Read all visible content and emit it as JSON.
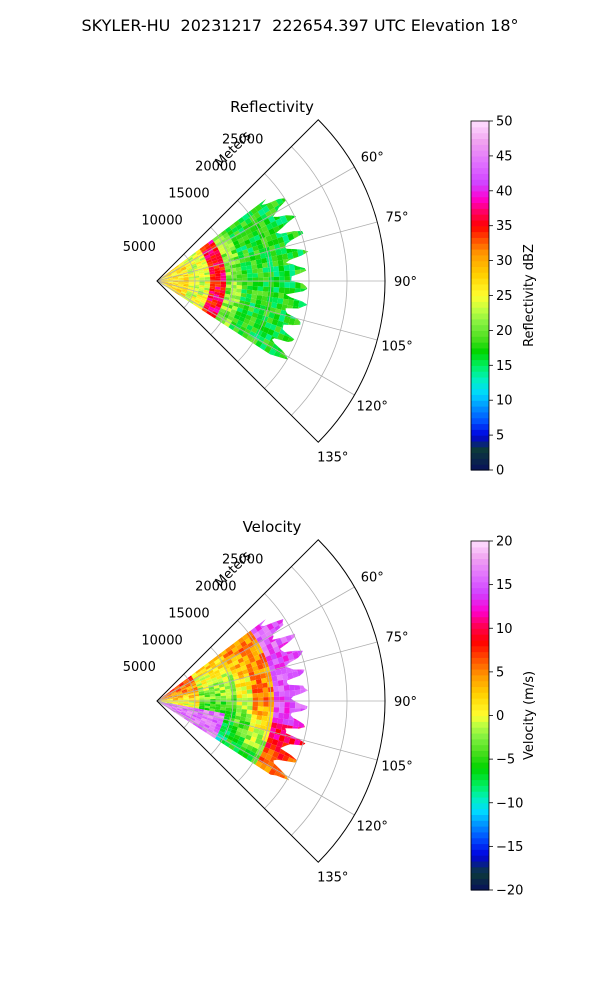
{
  "figure": {
    "title": "SKYLER-HU  20231217  222654.397 UTC Elevation 18°"
  },
  "chart_data": [
    {
      "type": "heatmap",
      "title": "Reflectivity",
      "radial_axis_label": "Meters",
      "radial_ticks": [
        5000,
        10000,
        15000,
        20000,
        25000
      ],
      "radial_tick_labels": [
        "5000",
        "10000",
        "15000",
        "20000",
        "25000"
      ],
      "radial_max": 30000,
      "azimuth_range": [
        45,
        135
      ],
      "azimuth_ticks": [
        60,
        75,
        90,
        105,
        120,
        135
      ],
      "azimuth_tick_labels": [
        "60°",
        "75°",
        "90°",
        "105°",
        "120°",
        "135°"
      ],
      "data_extent": {
        "azimuth": [
          53,
          123
        ],
        "range_max": 20000
      },
      "colorbar": {
        "label": "Reflectivity dBZ",
        "range": [
          0,
          50
        ],
        "ticks": [
          0,
          5,
          10,
          15,
          20,
          25,
          30,
          35,
          40,
          45,
          50
        ],
        "tick_labels": [
          "0",
          "5",
          "10",
          "15",
          "20",
          "25",
          "30",
          "35",
          "40",
          "45",
          "50"
        ],
        "color_stops": [
          [
            0,
            "#08105a"
          ],
          [
            3,
            "#0c3a3a"
          ],
          [
            5,
            "#0000e0"
          ],
          [
            7,
            "#0050ff"
          ],
          [
            9,
            "#0090ff"
          ],
          [
            11,
            "#00d8ff"
          ],
          [
            13,
            "#00f0c0"
          ],
          [
            15,
            "#00f060"
          ],
          [
            17,
            "#00d400"
          ],
          [
            19,
            "#50e020"
          ],
          [
            21,
            "#80f040"
          ],
          [
            23,
            "#c0ff40"
          ],
          [
            25,
            "#ffff30"
          ],
          [
            28,
            "#ffd000"
          ],
          [
            31,
            "#ff9a00"
          ],
          [
            33,
            "#ff5000"
          ],
          [
            35,
            "#ff0000"
          ],
          [
            37,
            "#ff0060"
          ],
          [
            39,
            "#ff00d0"
          ],
          [
            41,
            "#d040ff"
          ],
          [
            44,
            "#e070ff"
          ],
          [
            47,
            "#f0a0f0"
          ],
          [
            50,
            "#ffe0ff"
          ]
        ]
      },
      "field_zones": [
        {
          "range": [
            0,
            4000
          ],
          "value": 27
        },
        {
          "range": [
            4000,
            7000
          ],
          "value": 24
        },
        {
          "range": [
            7000,
            8500
          ],
          "value": 36
        },
        {
          "range": [
            8500,
            11000
          ],
          "value": 21
        },
        {
          "range": [
            11000,
            20000
          ],
          "value": 17
        }
      ]
    },
    {
      "type": "heatmap",
      "title": "Velocity",
      "radial_axis_label": "Meters",
      "radial_ticks": [
        5000,
        10000,
        15000,
        20000,
        25000
      ],
      "radial_tick_labels": [
        "5000",
        "10000",
        "15000",
        "20000",
        "25000"
      ],
      "radial_max": 30000,
      "azimuth_range": [
        45,
        135
      ],
      "azimuth_ticks": [
        60,
        75,
        90,
        105,
        120,
        135
      ],
      "azimuth_tick_labels": [
        "60°",
        "75°",
        "90°",
        "105°",
        "120°",
        "135°"
      ],
      "data_extent": {
        "azimuth": [
          53,
          123
        ],
        "range_max": 20000
      },
      "colorbar": {
        "label": "Velocity (m/s)",
        "range": [
          -20,
          20
        ],
        "ticks": [
          -20,
          -15,
          -10,
          -5,
          0,
          5,
          10,
          15,
          20
        ],
        "tick_labels": [
          "−20",
          "−15",
          "−10",
          "−5",
          "0",
          "5",
          "10",
          "15",
          "20"
        ],
        "color_stops": [
          [
            -20,
            "#08105a"
          ],
          [
            -18,
            "#0c3a3a"
          ],
          [
            -16,
            "#0000e0"
          ],
          [
            -14,
            "#0050ff"
          ],
          [
            -12.5,
            "#0090ff"
          ],
          [
            -11,
            "#00d8ff"
          ],
          [
            -9.5,
            "#00f0c0"
          ],
          [
            -8,
            "#00f060"
          ],
          [
            -6,
            "#00d400"
          ],
          [
            -4,
            "#50e020"
          ],
          [
            -2.5,
            "#80f040"
          ],
          [
            -1,
            "#c0ff40"
          ],
          [
            0,
            "#ffff30"
          ],
          [
            2.5,
            "#ffd000"
          ],
          [
            4.5,
            "#ff9a00"
          ],
          [
            6.5,
            "#ff5000"
          ],
          [
            8.5,
            "#ff0000"
          ],
          [
            10.5,
            "#ff0060"
          ],
          [
            12,
            "#ff00d0"
          ],
          [
            14,
            "#d040ff"
          ],
          [
            16,
            "#e070ff"
          ],
          [
            18,
            "#f0a0f0"
          ],
          [
            20,
            "#ffe0ff"
          ]
        ]
      },
      "field_zones": [
        {
          "range": [
            0,
            5000
          ],
          "value": 1
        },
        {
          "range": [
            5000,
            10000
          ],
          "value": -4
        },
        {
          "range": [
            10000,
            15000
          ],
          "value": -1
        },
        {
          "range": [
            15000,
            20000
          ],
          "value": 9
        }
      ]
    }
  ]
}
